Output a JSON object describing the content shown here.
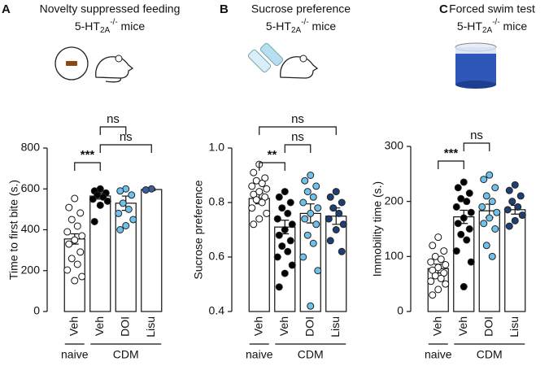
{
  "chart_data": [
    {
      "type": "bar",
      "panel": "A",
      "title": "Novelty suppressed feeding",
      "subtitle": {
        "base": "5-HT",
        "sub": "2A",
        "sup": "-/-",
        "rest": " mice"
      },
      "ylabel": "Time to first bite (s.)",
      "categories": [
        "Veh",
        "Veh",
        "DOI",
        "Lisu"
      ],
      "groups": [
        {
          "label": "naive",
          "from": 0,
          "to": 0
        },
        {
          "label": "CDM",
          "from": 1,
          "to": 3
        }
      ],
      "values": [
        355,
        565,
        530,
        597
      ],
      "errors": [
        25,
        15,
        35,
        5
      ],
      "colors": [
        "#ffffff",
        "#000000",
        "#6ec1ea",
        "#3a5d9c"
      ],
      "points": [
        [
          553,
          509,
          482,
          450,
          418,
          390,
          370,
          350,
          330,
          291,
          259,
          231,
          203,
          171,
          151
        ],
        [
          600,
          590,
          580,
          570,
          560,
          550,
          540,
          520,
          440
        ],
        [
          600,
          590,
          570,
          530,
          500,
          480,
          450,
          420,
          400
        ],
        [
          600,
          595
        ]
      ],
      "annotations": [
        {
          "label": "***",
          "from": 0,
          "to": 1
        },
        {
          "label": "ns",
          "from": 1,
          "to": 3
        },
        {
          "label": "ns",
          "from": 1,
          "to": 2
        }
      ],
      "ylim": [
        0,
        800
      ],
      "yticks": [
        0,
        200,
        400,
        600,
        800
      ]
    },
    {
      "type": "bar",
      "panel": "B",
      "title": "Sucrose preference",
      "subtitle": {
        "base": "5-HT",
        "sub": "2A",
        "sup": "-/-",
        "rest": " mice"
      },
      "ylabel": "Sucrose preference",
      "categories": [
        "Veh",
        "Veh",
        "DOI",
        "Lisu"
      ],
      "groups": [
        {
          "label": "naive",
          "from": 0,
          "to": 0
        },
        {
          "label": "CDM",
          "from": 1,
          "to": 3
        }
      ],
      "values": [
        0.815,
        0.71,
        0.76,
        0.75
      ],
      "errors": [
        0.02,
        0.025,
        0.035,
        0.03
      ],
      "colors": [
        "#ffffff",
        "#000000",
        "#6ec1ea",
        "#1d3f73"
      ],
      "points": [
        [
          0.94,
          0.91,
          0.89,
          0.88,
          0.87,
          0.86,
          0.85,
          0.84,
          0.83,
          0.82,
          0.81,
          0.8,
          0.78,
          0.76,
          0.74,
          0.72
        ],
        [
          0.84,
          0.82,
          0.8,
          0.78,
          0.76,
          0.74,
          0.72,
          0.7,
          0.68,
          0.66,
          0.64,
          0.62,
          0.6,
          0.57,
          0.54,
          0.49
        ],
        [
          0.9,
          0.88,
          0.86,
          0.84,
          0.82,
          0.8,
          0.78,
          0.76,
          0.74,
          0.72,
          0.68,
          0.65,
          0.6,
          0.55,
          0.42
        ],
        [
          0.84,
          0.82,
          0.8,
          0.78,
          0.76,
          0.74,
          0.72,
          0.7,
          0.66,
          0.62
        ]
      ],
      "annotations": [
        {
          "label": "**",
          "from": 0,
          "to": 1
        },
        {
          "label": "ns",
          "from": 1,
          "to": 2
        },
        {
          "label": "ns",
          "from": 0,
          "to": 3
        }
      ],
      "ylim": [
        0.4,
        1
      ],
      "yticks": [
        0.4,
        0.6,
        0.8,
        {
          "value": 1,
          "label": "1.0"
        }
      ]
    },
    {
      "type": "bar",
      "panel": "C",
      "title": "Forced swim test",
      "subtitle": {
        "base": "5-HT",
        "sub": "2A",
        "sup": "-/-",
        "rest": " mice"
      },
      "ylabel": "Immobility time (s.)",
      "categories": [
        "Veh",
        "Veh",
        "DOI",
        "Lisu"
      ],
      "groups": [
        {
          "label": "naive",
          "from": 0,
          "to": 0
        },
        {
          "label": "CDM",
          "from": 1,
          "to": 3
        }
      ],
      "values": [
        78,
        172,
        183,
        185
      ],
      "errors": [
        8,
        12,
        12,
        8
      ],
      "colors": [
        "#ffffff",
        "#000000",
        "#6ec1ea",
        "#1d3f73"
      ],
      "points": [
        [
          135,
          120,
          110,
          100,
          95,
          90,
          85,
          80,
          75,
          70,
          65,
          60,
          55,
          50,
          40,
          30
        ],
        [
          235,
          225,
          215,
          205,
          200,
          190,
          180,
          170,
          160,
          150,
          140,
          130,
          110,
          90,
          45
        ],
        [
          248,
          240,
          225,
          210,
          200,
          190,
          180,
          170,
          160,
          150,
          120,
          100
        ],
        [
          230,
          220,
          210,
          200,
          190,
          185,
          175,
          165,
          155
        ]
      ],
      "annotations": [
        {
          "label": "***",
          "from": 0,
          "to": 1
        },
        {
          "label": "ns",
          "from": 1,
          "to": 2
        }
      ],
      "ylim": [
        0,
        300
      ],
      "yticks": [
        0,
        100,
        200,
        300
      ]
    }
  ]
}
